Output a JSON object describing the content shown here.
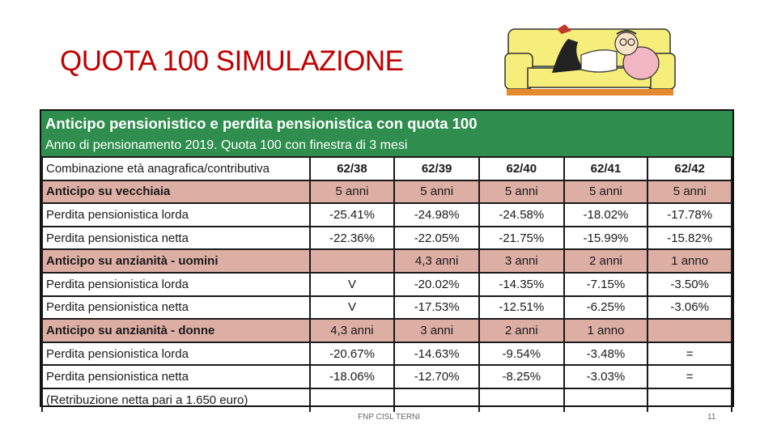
{
  "slide": {
    "title": "QUOTA 100 SIMULAZIONE",
    "footer_center": "FNP CISL TERNI",
    "page_number": "11",
    "illustration_icon": "cartoon-man-relaxing-on-sofa"
  },
  "table": {
    "title": "Anticipo pensionistico e perdita pensionistica con quota 100",
    "subtitle": "Anno di pensionamento 2019. Quota 100 con finestra di 3 mesi",
    "header_color": "#2f8e4e",
    "highlight_color": "#dcaea4",
    "rows": [
      {
        "label": "Combinazione età anagrafica/contributiva",
        "cells": [
          "62/38",
          "62/39",
          "62/40",
          "62/41",
          "62/42"
        ],
        "style": "colhdr"
      },
      {
        "label": "Anticipo su vecchiaia",
        "cells": [
          "5 anni",
          "5 anni",
          "5 anni",
          "5 anni",
          "5 anni"
        ],
        "style": "bold"
      },
      {
        "label": "Perdita pensionistica lorda",
        "cells": [
          "-25.41%",
          "-24.98%",
          "-24.58%",
          "-18.02%",
          "-17.78%"
        ],
        "style": "normal"
      },
      {
        "label": "Perdita pensionistica netta",
        "cells": [
          "-22.36%",
          "-22.05%",
          "-21.75%",
          "-15.99%",
          "-15.82%"
        ],
        "style": "normal"
      },
      {
        "label": "Anticipo su anzianità - uomini",
        "cells": [
          "",
          "4,3 anni",
          "3 anni",
          "2 anni",
          "1 anno"
        ],
        "style": "bold"
      },
      {
        "label": "Perdita pensionistica lorda",
        "cells": [
          "V",
          "-20.02%",
          "-14.35%",
          "-7.15%",
          "-3.50%"
        ],
        "style": "normal"
      },
      {
        "label": "Perdita pensionistica netta",
        "cells": [
          "V",
          "-17.53%",
          "-12.51%",
          "-6.25%",
          "-3.06%"
        ],
        "style": "normal"
      },
      {
        "label": "Anticipo su anzianità - donne",
        "cells": [
          "4,3 anni",
          "3 anni",
          "2 anni",
          "1 anno",
          ""
        ],
        "style": "bold"
      },
      {
        "label": "Perdita pensionistica lorda",
        "cells": [
          "-20.67%",
          "-14.63%",
          "-9.54%",
          "-3.48%",
          "="
        ],
        "style": "normal"
      },
      {
        "label": "Perdita pensionistica netta",
        "cells": [
          "-18.06%",
          "-12.70%",
          "-8.25%",
          "-3.03%",
          "="
        ],
        "style": "normal"
      }
    ],
    "note": "(Retribuzione netta pari a 1.650 euro)"
  }
}
